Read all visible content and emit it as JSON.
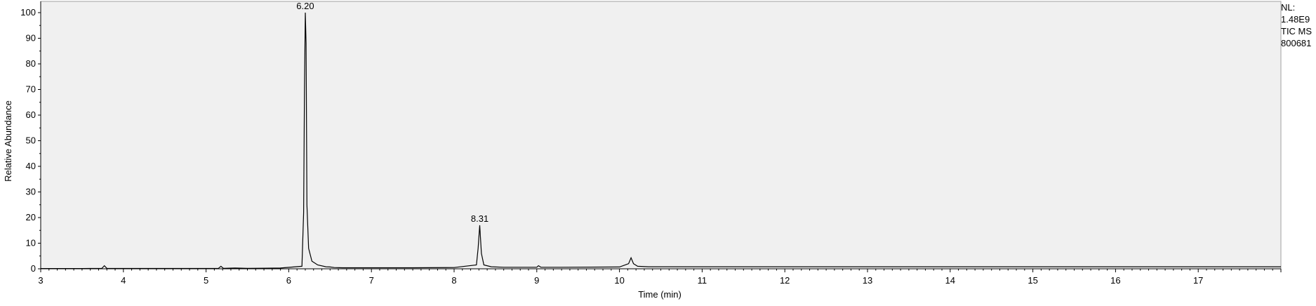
{
  "chart_data": {
    "type": "line",
    "title": "",
    "xlabel": "Time (min)",
    "ylabel": "Relative Abundance",
    "xlim": [
      3,
      18
    ],
    "ylim": [
      0,
      100
    ],
    "x_ticks": [
      "3",
      "4",
      "5",
      "6",
      "7",
      "8",
      "9",
      "10",
      "11",
      "12",
      "13",
      "14",
      "15",
      "16",
      "17"
    ],
    "y_ticks": [
      "0",
      "10",
      "20",
      "30",
      "40",
      "50",
      "60",
      "70",
      "80",
      "90",
      "100"
    ],
    "grid": false,
    "series": [
      {
        "x": [
          3.0,
          3.5,
          3.74,
          3.77,
          3.8,
          4.0,
          4.5,
          5.0,
          5.15,
          5.18,
          5.21,
          5.35,
          5.5,
          5.9,
          6.16,
          6.18,
          6.19,
          6.2,
          6.21,
          6.22,
          6.24,
          6.28,
          6.35,
          6.45,
          6.5,
          6.55,
          6.65,
          7.0,
          7.5,
          8.0,
          8.27,
          8.29,
          8.31,
          8.33,
          8.36,
          8.45,
          8.6,
          9.0,
          9.02,
          9.05,
          9.3,
          10.0,
          10.11,
          10.14,
          10.17,
          10.22,
          10.35,
          11.0,
          12.0,
          13.0,
          14.0,
          15.0,
          16.0,
          17.0,
          18.0
        ],
        "y": [
          0.1,
          0.1,
          0.2,
          1.2,
          0.2,
          0.15,
          0.15,
          0.15,
          0.2,
          1.0,
          0.2,
          0.3,
          0.2,
          0.3,
          1.0,
          22.0,
          70.0,
          100.0,
          88.0,
          25.0,
          8.0,
          3.0,
          1.5,
          0.8,
          0.7,
          0.5,
          0.4,
          0.4,
          0.4,
          0.5,
          1.5,
          8.0,
          17.0,
          6.0,
          1.5,
          0.8,
          0.6,
          0.6,
          1.2,
          0.6,
          0.6,
          0.7,
          2.0,
          4.3,
          2.0,
          1.0,
          0.8,
          0.8,
          0.8,
          0.8,
          0.8,
          0.8,
          0.8,
          0.8,
          0.8
        ]
      }
    ],
    "peak_labels": [
      {
        "x": 6.2,
        "y": 100,
        "text": "6.20"
      },
      {
        "x": 8.31,
        "y": 17,
        "text": "8.31"
      }
    ]
  },
  "info": {
    "nl_label": "NL:",
    "nl_value": "1.48E9",
    "scan": "TIC  MS",
    "file": "800681"
  },
  "colors": {
    "plot_background": "#f0f0f0",
    "trace": "#000000",
    "axis": "#000000"
  }
}
